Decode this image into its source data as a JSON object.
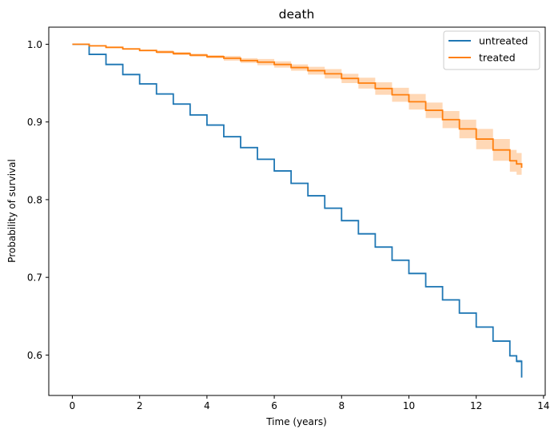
{
  "chart_data": {
    "type": "line",
    "title": "death",
    "xlabel": "Time (years)",
    "ylabel": "Probability of survival",
    "xlim": [
      -0.7,
      14.05
    ],
    "ylim": [
      0.548,
      1.022
    ],
    "x_ticks": [
      0,
      2,
      4,
      6,
      8,
      10,
      12,
      14
    ],
    "y_ticks": [
      0.6,
      0.7,
      0.8,
      0.9,
      1.0
    ],
    "x_tick_labels": [
      "0",
      "2",
      "4",
      "6",
      "8",
      "10",
      "12",
      "14"
    ],
    "y_tick_labels": [
      "0.6",
      "0.7",
      "0.8",
      "0.9",
      "1.0"
    ],
    "grid": false,
    "legend_position": "top-right",
    "series": [
      {
        "name": "untreated",
        "color": "#1f77b4",
        "x": [
          0,
          0.5,
          1,
          1.5,
          2,
          2.5,
          3,
          3.5,
          4,
          4.5,
          5,
          5.5,
          6,
          6.5,
          7,
          7.5,
          8,
          8.5,
          9,
          9.5,
          10,
          10.5,
          11,
          11.5,
          12,
          12.5,
          13,
          13.2,
          13.35
        ],
        "y": [
          1.0,
          0.987,
          0.974,
          0.961,
          0.949,
          0.936,
          0.923,
          0.909,
          0.896,
          0.881,
          0.867,
          0.852,
          0.837,
          0.821,
          0.805,
          0.789,
          0.773,
          0.756,
          0.739,
          0.722,
          0.705,
          0.688,
          0.671,
          0.654,
          0.636,
          0.618,
          0.599,
          0.592,
          0.571
        ],
        "ci_lower": [
          1.0,
          0.986,
          0.973,
          0.96,
          0.948,
          0.935,
          0.922,
          0.908,
          0.895,
          0.88,
          0.866,
          0.851,
          0.836,
          0.82,
          0.804,
          0.788,
          0.772,
          0.755,
          0.738,
          0.721,
          0.704,
          0.687,
          0.67,
          0.653,
          0.635,
          0.617,
          0.598,
          0.59,
          0.569
        ],
        "ci_upper": [
          1.0,
          0.988,
          0.975,
          0.962,
          0.95,
          0.937,
          0.924,
          0.91,
          0.897,
          0.882,
          0.868,
          0.853,
          0.838,
          0.822,
          0.806,
          0.79,
          0.774,
          0.757,
          0.74,
          0.723,
          0.706,
          0.689,
          0.672,
          0.655,
          0.637,
          0.619,
          0.6,
          0.594,
          0.573
        ]
      },
      {
        "name": "treated",
        "color": "#ff7f0e",
        "x": [
          0,
          0.5,
          1,
          1.5,
          2,
          2.5,
          3,
          3.5,
          4,
          4.5,
          5,
          5.5,
          6,
          6.5,
          7,
          7.5,
          8,
          8.5,
          9,
          9.5,
          10,
          10.5,
          11,
          11.5,
          12,
          12.5,
          13,
          13.2,
          13.35
        ],
        "y": [
          1.0,
          0.998,
          0.996,
          0.994,
          0.992,
          0.99,
          0.988,
          0.986,
          0.984,
          0.982,
          0.979,
          0.977,
          0.974,
          0.97,
          0.966,
          0.962,
          0.956,
          0.95,
          0.943,
          0.935,
          0.926,
          0.915,
          0.903,
          0.891,
          0.878,
          0.864,
          0.85,
          0.846,
          0.841
        ],
        "ci_lower": [
          1.0,
          0.997,
          0.995,
          0.993,
          0.991,
          0.988,
          0.986,
          0.984,
          0.982,
          0.979,
          0.976,
          0.973,
          0.97,
          0.966,
          0.961,
          0.956,
          0.95,
          0.943,
          0.935,
          0.926,
          0.916,
          0.905,
          0.892,
          0.879,
          0.865,
          0.85,
          0.836,
          0.832,
          0.829
        ],
        "ci_upper": [
          1.0,
          0.999,
          0.997,
          0.995,
          0.993,
          0.992,
          0.99,
          0.988,
          0.986,
          0.985,
          0.982,
          0.981,
          0.978,
          0.974,
          0.971,
          0.968,
          0.962,
          0.957,
          0.951,
          0.944,
          0.936,
          0.925,
          0.914,
          0.903,
          0.891,
          0.878,
          0.864,
          0.86,
          0.853
        ]
      }
    ]
  }
}
